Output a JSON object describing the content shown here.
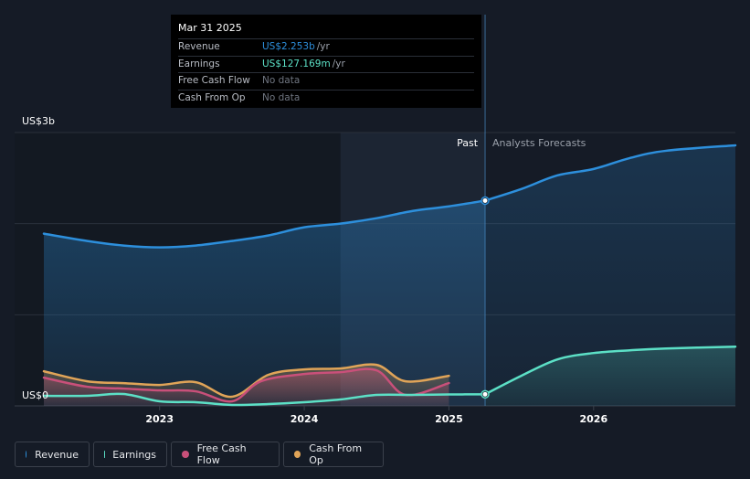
{
  "chart_data": {
    "type": "area",
    "y_axis": {
      "top_label": "US$3b",
      "zero_label": "US$0",
      "ylim": [
        0,
        3.0
      ],
      "unit": "US$b"
    },
    "x_ticks": [
      {
        "label": "2023",
        "x": 2023.0
      },
      {
        "label": "2024",
        "x": 2024.0
      },
      {
        "label": "2025",
        "x": 2025.0
      },
      {
        "label": "2026",
        "x": 2026.0
      }
    ],
    "xlim": [
      2022.2,
      2026.98
    ],
    "past_label": "Past",
    "forecast_label": "Analysts Forecasts",
    "divider_x": 2025.25,
    "highlight_range": [
      2024.25,
      2025.25
    ],
    "colors": {
      "revenue": "#2d8fdc",
      "earnings": "#5ce0c6",
      "fcf": "#c9507a",
      "cfo": "#e0a458",
      "grid": "#2a303b",
      "axis_text": "#ffffff"
    },
    "series": [
      {
        "name": "Revenue",
        "key": "revenue",
        "points": [
          [
            2022.2,
            1.89
          ],
          [
            2022.5,
            1.81
          ],
          [
            2022.75,
            1.76
          ],
          [
            2023.0,
            1.74
          ],
          [
            2023.25,
            1.76
          ],
          [
            2023.5,
            1.81
          ],
          [
            2023.75,
            1.87
          ],
          [
            2024.0,
            1.96
          ],
          [
            2024.25,
            2.0
          ],
          [
            2024.5,
            2.06
          ],
          [
            2024.75,
            2.14
          ],
          [
            2025.0,
            2.19
          ],
          [
            2025.25,
            2.253
          ]
        ],
        "forecast": [
          [
            2025.25,
            2.253
          ],
          [
            2025.5,
            2.38
          ],
          [
            2025.75,
            2.53
          ],
          [
            2026.0,
            2.6
          ],
          [
            2026.25,
            2.72
          ],
          [
            2026.5,
            2.8
          ],
          [
            2026.98,
            2.86
          ]
        ]
      },
      {
        "name": "Earnings",
        "key": "earnings",
        "points": [
          [
            2022.2,
            0.11
          ],
          [
            2022.5,
            0.11
          ],
          [
            2022.75,
            0.13
          ],
          [
            2023.0,
            0.05
          ],
          [
            2023.25,
            0.04
          ],
          [
            2023.5,
            0.01
          ],
          [
            2023.75,
            0.02
          ],
          [
            2024.0,
            0.04
          ],
          [
            2024.25,
            0.07
          ],
          [
            2024.5,
            0.12
          ],
          [
            2024.75,
            0.12
          ],
          [
            2025.0,
            0.125
          ],
          [
            2025.25,
            0.127169
          ]
        ],
        "forecast": [
          [
            2025.25,
            0.127169
          ],
          [
            2025.5,
            0.33
          ],
          [
            2025.75,
            0.51
          ],
          [
            2026.0,
            0.58
          ],
          [
            2026.25,
            0.61
          ],
          [
            2026.5,
            0.63
          ],
          [
            2026.98,
            0.65
          ]
        ]
      },
      {
        "name": "Free Cash Flow",
        "key": "fcf",
        "points": [
          [
            2022.2,
            0.31
          ],
          [
            2022.5,
            0.21
          ],
          [
            2022.75,
            0.19
          ],
          [
            2023.0,
            0.17
          ],
          [
            2023.25,
            0.16
          ],
          [
            2023.5,
            0.05
          ],
          [
            2023.7,
            0.27
          ],
          [
            2024.0,
            0.35
          ],
          [
            2024.25,
            0.37
          ],
          [
            2024.5,
            0.39
          ],
          [
            2024.7,
            0.12
          ],
          [
            2025.0,
            0.25
          ]
        ],
        "forecast": []
      },
      {
        "name": "Cash From Op",
        "key": "cfo",
        "points": [
          [
            2022.2,
            0.38
          ],
          [
            2022.5,
            0.27
          ],
          [
            2022.75,
            0.25
          ],
          [
            2023.0,
            0.23
          ],
          [
            2023.25,
            0.26
          ],
          [
            2023.5,
            0.1
          ],
          [
            2023.75,
            0.34
          ],
          [
            2024.0,
            0.4
          ],
          [
            2024.25,
            0.41
          ],
          [
            2024.5,
            0.45
          ],
          [
            2024.7,
            0.27
          ],
          [
            2025.0,
            0.33
          ]
        ],
        "forecast": []
      }
    ]
  },
  "tooltip": {
    "date": "Mar 31 2025",
    "rows": [
      {
        "label": "Revenue",
        "value": "US$2.253b",
        "unit": "/yr",
        "color": "#2d8fdc"
      },
      {
        "label": "Earnings",
        "value": "US$127.169m",
        "unit": "/yr",
        "color": "#5ce0c6"
      },
      {
        "label": "Free Cash Flow",
        "value": "No data",
        "unit": "",
        "color": "#6f7580"
      },
      {
        "label": "Cash From Op",
        "value": "No data",
        "unit": "",
        "color": "#6f7580"
      }
    ]
  },
  "legend": [
    {
      "label": "Revenue",
      "color": "#2d8fdc"
    },
    {
      "label": "Earnings",
      "color": "#5ce0c6"
    },
    {
      "label": "Free Cash Flow",
      "color": "#c9507a"
    },
    {
      "label": "Cash From Op",
      "color": "#e0a458"
    }
  ]
}
